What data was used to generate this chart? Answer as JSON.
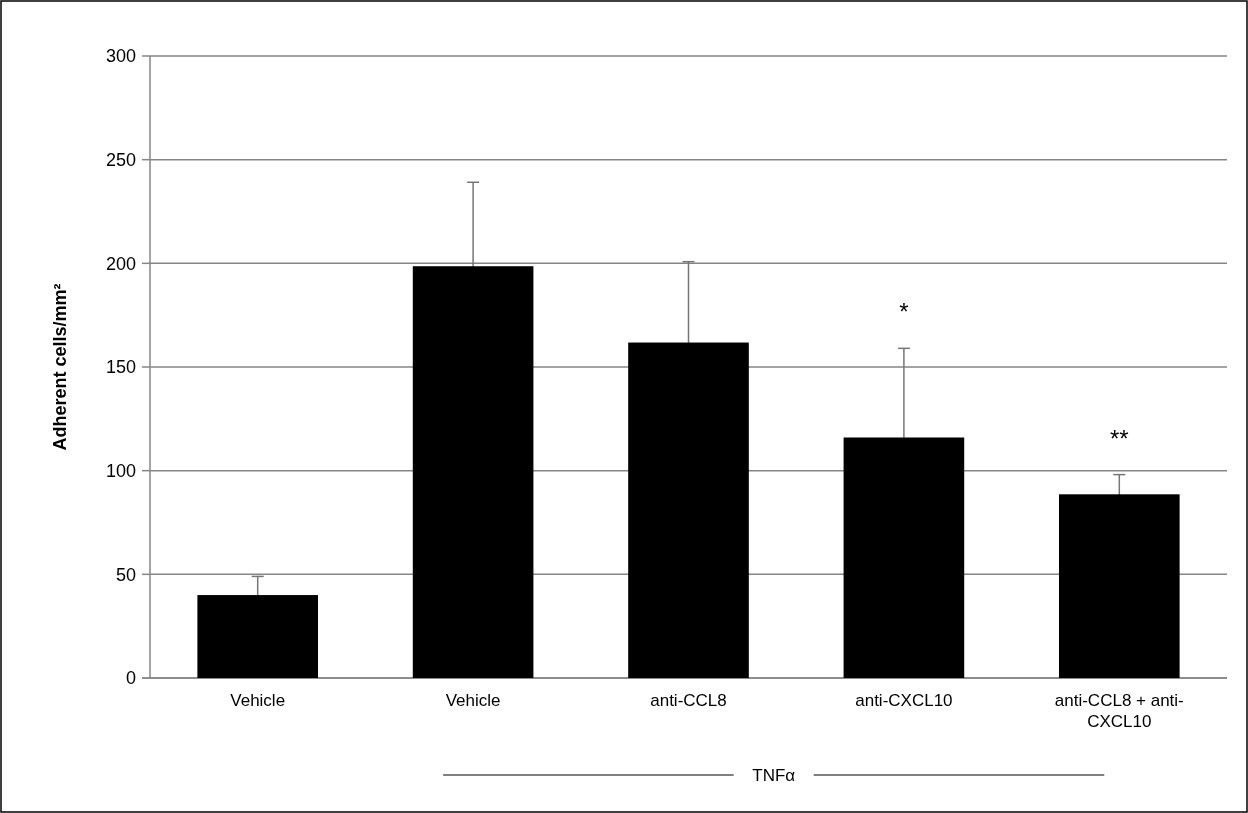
{
  "chart_data": {
    "type": "bar",
    "ylabel": "Adherent cells/mm²",
    "categories": [
      "Vehicle",
      "Vehicle",
      "anti-CCL8",
      "anti-CXCL10",
      "anti-CCL8 + anti-CXCL10"
    ],
    "values": [
      40,
      198.6,
      161.8,
      116,
      88.6
    ],
    "errors": [
      9,
      40.5,
      39,
      43,
      9.5
    ],
    "color": "#000000",
    "ylim": [
      0,
      300
    ],
    "yticks": [
      0,
      50,
      100,
      150,
      200,
      250,
      300
    ],
    "grid": "y",
    "annotations": [
      "*",
      "**",
      "TNFα"
    ]
  }
}
